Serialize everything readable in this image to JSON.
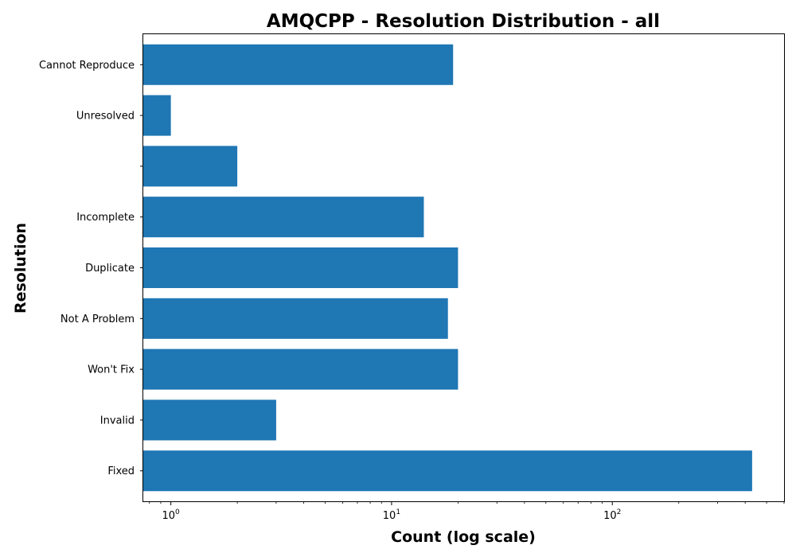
{
  "chart_data": {
    "type": "bar",
    "orientation": "horizontal",
    "title": "AMQCPP - Resolution Distribution - all",
    "xlabel": "Count (log scale)",
    "ylabel": "Resolution",
    "x_scale": "log",
    "xlim": [
      0.75,
      600
    ],
    "grid": false,
    "legend": "none",
    "bar_color": "#1f77b4",
    "x_ticks": [
      {
        "base": "10",
        "exp": "0",
        "value": 1
      },
      {
        "base": "10",
        "exp": "1",
        "value": 10
      },
      {
        "base": "10",
        "exp": "2",
        "value": 100
      }
    ],
    "categories": [
      "Fixed",
      "Invalid",
      "Won't Fix",
      "Not A Problem",
      "Duplicate",
      "Incomplete",
      "",
      "Unresolved",
      "Cannot Reproduce"
    ],
    "values": [
      430,
      3,
      20,
      18,
      20,
      14,
      2,
      1,
      19
    ]
  }
}
